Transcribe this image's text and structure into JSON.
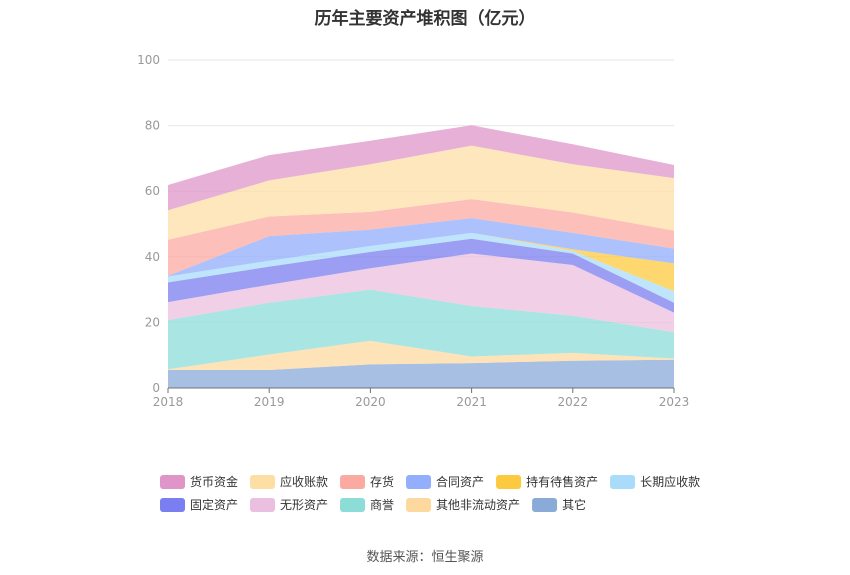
{
  "chart_data": {
    "type": "area",
    "stacked": true,
    "title": "历年主要资产堆积图（亿元）",
    "x": [
      "2018",
      "2019",
      "2020",
      "2021",
      "2022",
      "2023"
    ],
    "ylim": [
      0,
      100
    ],
    "yticks": [
      0,
      20,
      40,
      60,
      80,
      100
    ],
    "grid": true,
    "legend_position": "bottom",
    "series": [
      {
        "name": "其它",
        "color": "#8aaad8",
        "values": [
          5.5,
          5.5,
          7.2,
          7.6,
          8.3,
          8.6
        ]
      },
      {
        "name": "其他非流动资产",
        "color": "#fdd9a0",
        "values": [
          0.2,
          4.7,
          7.2,
          2.0,
          2.4,
          0.4
        ]
      },
      {
        "name": "商誉",
        "color": "#8cdcd8",
        "values": [
          15.0,
          15.8,
          15.6,
          15.4,
          11.3,
          8.0
        ]
      },
      {
        "name": "无形资产",
        "color": "#ebbfdf",
        "values": [
          5.5,
          5.5,
          6.5,
          16.0,
          15.5,
          6.0
        ]
      },
      {
        "name": "固定资产",
        "color": "#7b7ef0",
        "values": [
          6.0,
          5.5,
          5.0,
          4.5,
          3.5,
          3.0
        ]
      },
      {
        "name": "长期应收款",
        "color": "#a8dcfa",
        "values": [
          1.8,
          1.8,
          1.8,
          1.8,
          0.8,
          3.5
        ]
      },
      {
        "name": "持有待售资产",
        "color": "#fdc93f",
        "values": [
          0,
          0,
          0,
          0,
          0.5,
          8.5
        ]
      },
      {
        "name": "合同资产",
        "color": "#92aefc",
        "values": [
          0.2,
          7.5,
          5.0,
          4.5,
          5.0,
          4.5
        ]
      },
      {
        "name": "存货",
        "color": "#fbaaa2",
        "values": [
          11.0,
          6.0,
          5.4,
          5.8,
          6.2,
          5.5
        ]
      },
      {
        "name": "应收账款",
        "color": "#fddfa6",
        "values": [
          9.0,
          11.0,
          14.5,
          16.3,
          14.7,
          16.0
        ]
      },
      {
        "name": "货币资金",
        "color": "#df95c8",
        "values": [
          7.7,
          7.7,
          7.2,
          6.2,
          6.1,
          4.0
        ]
      }
    ],
    "legend_order": [
      "货币资金",
      "应收账款",
      "存货",
      "合同资产",
      "持有待售资产",
      "长期应收款",
      "固定资产",
      "无形资产",
      "商誉",
      "其他非流动资产",
      "其它"
    ]
  },
  "source_text": "数据来源：恒生聚源"
}
